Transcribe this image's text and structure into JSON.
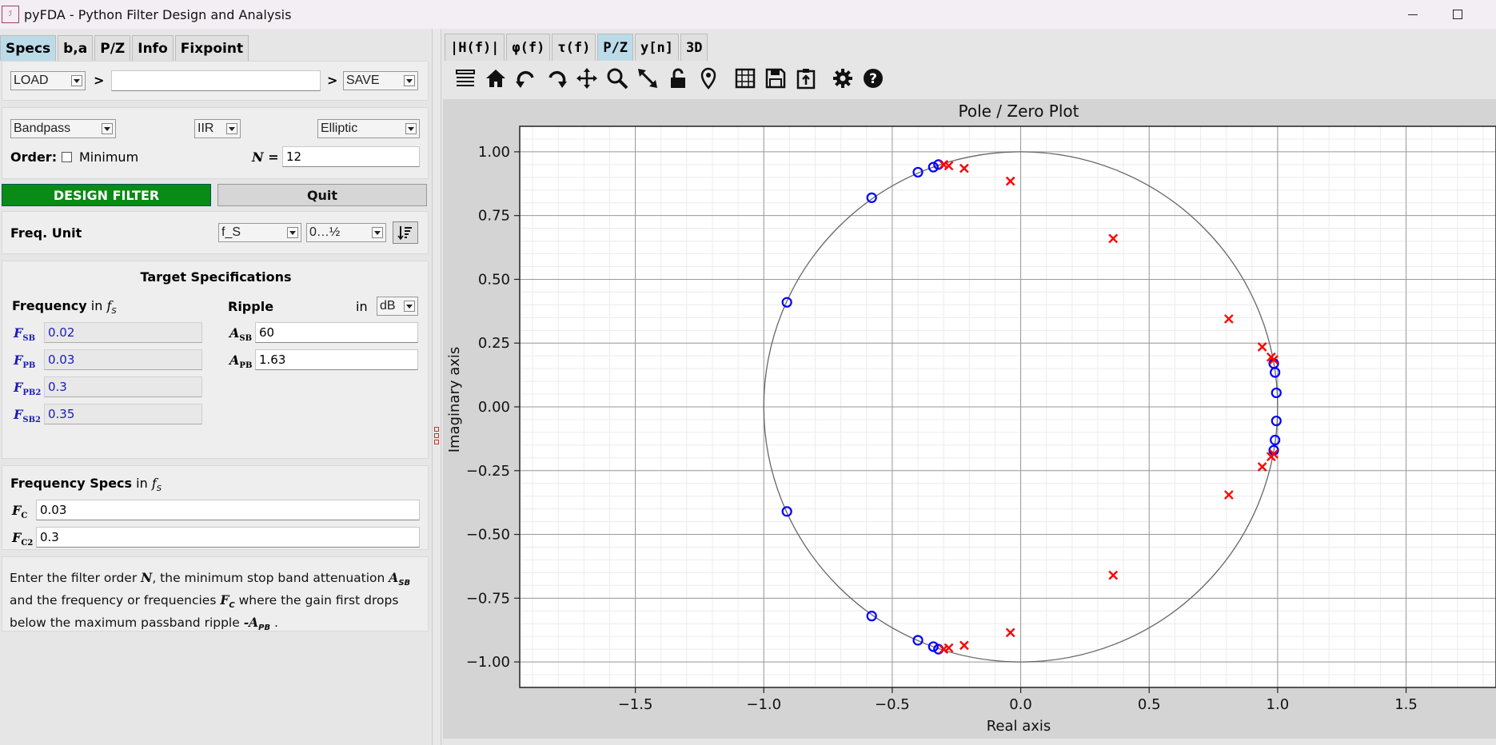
{
  "window": {
    "title": "pyFDA - Python Filter Design and Analysis",
    "minimize_symbol": "—",
    "maximize_symbol": "☐"
  },
  "left_tabs": [
    "Specs",
    "b,a",
    "P/Z",
    "Info",
    "Fixpoint"
  ],
  "file_row": {
    "load": "LOAD",
    "arrow1": ">",
    "filename": "",
    "arrow2": ">",
    "save": "SAVE"
  },
  "filter_select": {
    "response_type": "Bandpass",
    "filter_type": "IIR",
    "design_method": "Elliptic",
    "order_label": "Order:",
    "minimum_label": "Minimum",
    "n_label": "N =",
    "n_value": "12"
  },
  "buttons": {
    "design": "DESIGN FILTER",
    "quit": "Quit"
  },
  "freq_unit": {
    "label": "Freq. Unit",
    "unit": "f_S",
    "range": "0…½"
  },
  "target_specs": {
    "title": "Target Specifications",
    "frequency_label": "Frequency",
    "in": "in",
    "fs": "f",
    "fs_sub": "S",
    "ripple_label": "Ripple",
    "ripple_unit": "dB",
    "freqs": [
      {
        "name": "F",
        "sub": "SB",
        "value": "0.02"
      },
      {
        "name": "F",
        "sub": "PB",
        "value": "0.03"
      },
      {
        "name": "F",
        "sub": "PB2",
        "value": "0.3"
      },
      {
        "name": "F",
        "sub": "SB2",
        "value": "0.35"
      }
    ],
    "ripples": [
      {
        "name": "A",
        "sub": "SB",
        "value": "60"
      },
      {
        "name": "A",
        "sub": "PB",
        "value": "1.63"
      }
    ]
  },
  "freq_specs": {
    "title": "Frequency Specs",
    "in": "in",
    "fs": "f",
    "fs_sub": "S",
    "rows": [
      {
        "name": "F",
        "sub": "C",
        "value": "0.03"
      },
      {
        "name": "F",
        "sub": "C2",
        "value": "0.3"
      }
    ]
  },
  "description": {
    "p1": "Enter the filter order ",
    "n": "N",
    "p2": ", the minimum stop band attenuation ",
    "asb": "A",
    "asb_sub": "SB",
    "p3": " and the frequency or frequencies ",
    "fc": "F",
    "fc_sub": "C",
    "p4": " where the gain first drops below the maximum passband ripple ",
    "apb": "-A",
    "apb_sub": "PB",
    "p5": " ."
  },
  "right_tabs": [
    "|H(f)|",
    "φ(f)",
    "τ(f)",
    "P/Z",
    "y[n]",
    "3D"
  ],
  "toolbar_icons": [
    "menu-icon",
    "home-icon",
    "undo-icon",
    "redo-icon",
    "pan-icon",
    "zoom-icon",
    "autoscale-icon",
    "lock-icon",
    "marker-icon",
    "grid-icon",
    "save-icon",
    "clipboard-icon",
    "settings-icon",
    "help-icon"
  ],
  "chart_data": {
    "type": "scatter",
    "title": "Pole / Zero Plot",
    "xlabel": "Real axis",
    "ylabel": "Imaginary axis",
    "xlim": [
      -1.95,
      1.85
    ],
    "ylim": [
      -1.1,
      1.1
    ],
    "xticks": [
      -1.5,
      -1.0,
      -0.5,
      0.0,
      0.5,
      1.0,
      1.5
    ],
    "xtick_labels": [
      "−1.5",
      "−1.0",
      "−0.5",
      "0.0",
      "0.5",
      "1.0",
      "1.5"
    ],
    "yticks": [
      1.0,
      0.75,
      0.5,
      0.25,
      0.0,
      -0.25,
      -0.5,
      -0.75,
      -1.0
    ],
    "ytick_labels": [
      "1.00",
      "0.75",
      "0.50",
      "0.25",
      "0.00",
      "−0.25",
      "−0.50",
      "−0.75",
      "−1.00"
    ],
    "grid": true,
    "unit_circle": true,
    "colors": {
      "zeros": "#0000ff",
      "poles": "#ff0000"
    },
    "series": [
      {
        "marker": "o",
        "points": [
          [
            -0.91,
            0.41
          ],
          [
            -0.58,
            0.82
          ],
          [
            -0.4,
            0.92
          ],
          [
            -0.34,
            0.94
          ],
          [
            -0.32,
            0.95
          ],
          [
            -0.91,
            -0.41
          ],
          [
            -0.58,
            -0.82
          ],
          [
            -0.4,
            -0.915
          ],
          [
            -0.34,
            -0.94
          ],
          [
            -0.32,
            -0.95
          ],
          [
            0.985,
            0.17
          ],
          [
            0.99,
            0.135
          ],
          [
            0.995,
            0.055
          ],
          [
            0.995,
            -0.055
          ],
          [
            0.99,
            -0.13
          ],
          [
            0.985,
            -0.17
          ]
        ]
      },
      {
        "marker": "x",
        "points": [
          [
            -0.3,
            0.95
          ],
          [
            -0.28,
            0.945
          ],
          [
            -0.22,
            0.935
          ],
          [
            -0.04,
            0.885
          ],
          [
            0.36,
            0.66
          ],
          [
            0.81,
            0.345
          ],
          [
            0.94,
            0.235
          ],
          [
            0.975,
            0.195
          ],
          [
            0.985,
            0.185
          ],
          [
            -0.3,
            -0.95
          ],
          [
            -0.28,
            -0.945
          ],
          [
            -0.22,
            -0.935
          ],
          [
            -0.04,
            -0.885
          ],
          [
            0.36,
            -0.66
          ],
          [
            0.81,
            -0.345
          ],
          [
            0.94,
            -0.235
          ],
          [
            0.975,
            -0.195
          ],
          [
            0.985,
            -0.185
          ]
        ]
      }
    ]
  }
}
